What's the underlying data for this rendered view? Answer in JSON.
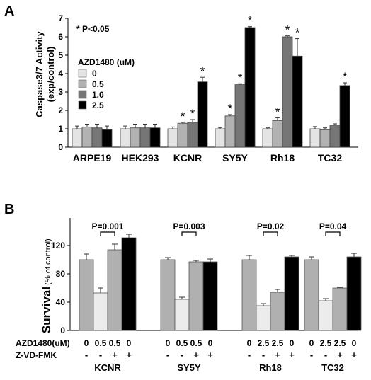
{
  "chart_data": [
    {
      "type": "bar",
      "panel_label": "A",
      "ylabel_line1": "Caspase3/7 Activity",
      "ylabel_line2": "(exp/control)",
      "ylim": [
        0,
        7
      ],
      "yticks": [
        "0",
        "1",
        "2",
        "3",
        "4",
        "5",
        "6",
        "7"
      ],
      "annotation": "* P<0.05",
      "legend_title": "AZD1480 (uM)",
      "legend_placement": "top-left",
      "categories": [
        "ARPE19",
        "HEK293",
        "KCNR",
        "SY5Y",
        "Rh18",
        "TC32"
      ],
      "series": [
        {
          "name": "0",
          "color": "#e4e4e4",
          "values": [
            1.0,
            1.0,
            1.0,
            1.0,
            1.0,
            1.0
          ],
          "errors": [
            0.15,
            0.15,
            0.1,
            0.07,
            0.05,
            0.12
          ],
          "sig": [
            false,
            false,
            false,
            false,
            false,
            false
          ]
        },
        {
          "name": "0.5",
          "color": "#b2b2b2",
          "values": [
            1.1,
            1.05,
            1.3,
            1.7,
            1.45,
            0.95
          ],
          "errors": [
            0.15,
            0.2,
            0.05,
            0.07,
            0.15,
            0.1
          ],
          "sig": [
            false,
            false,
            true,
            true,
            true,
            false
          ]
        },
        {
          "name": "1.0",
          "color": "#767676",
          "values": [
            1.05,
            1.05,
            1.35,
            3.4,
            6.0,
            1.2
          ],
          "errors": [
            0.2,
            0.2,
            0.15,
            0.05,
            0.05,
            0.07
          ],
          "sig": [
            false,
            false,
            true,
            true,
            true,
            false
          ]
        },
        {
          "name": "2.5",
          "color": "#000000",
          "values": [
            0.95,
            1.05,
            3.55,
            6.5,
            4.95,
            3.35
          ],
          "errors": [
            0.2,
            0.2,
            0.25,
            0.05,
            0.95,
            0.15
          ],
          "sig": [
            false,
            false,
            true,
            true,
            true,
            true
          ]
        }
      ],
      "asterisk": "*"
    },
    {
      "type": "bar",
      "panel_label": "B",
      "ylabel": "Survival",
      "ylabel_unit": "(% of control)",
      "ylim": [
        0,
        140
      ],
      "yticks": [
        "0",
        "40",
        "80",
        "120"
      ],
      "row_labels": [
        "AZD1480(uM)",
        "Z-VD-FMK"
      ],
      "groups": [
        {
          "name": "KCNR",
          "values": [
            100,
            53,
            114,
            131
          ],
          "errors": [
            8,
            7,
            8,
            5
          ],
          "colors": [
            "#b0b0b0",
            "#ececec",
            "#b0b0b0",
            "#000000"
          ],
          "azd": [
            "0",
            "0.5",
            "0.5",
            "0"
          ],
          "zvd": [
            "-",
            "-",
            "+",
            "+"
          ],
          "p_label": "P=0.001",
          "p_bars": [
            1,
            2
          ]
        },
        {
          "name": "SY5Y",
          "values": [
            100,
            44,
            97,
            97
          ],
          "errors": [
            3,
            3,
            2,
            4
          ],
          "colors": [
            "#b0b0b0",
            "#ececec",
            "#b0b0b0",
            "#000000"
          ],
          "azd": [
            "0",
            "0.5",
            "0.5",
            "0"
          ],
          "zvd": [
            "-",
            "-",
            "+",
            "+"
          ],
          "p_label": "P=0.003",
          "p_bars": [
            1,
            2
          ]
        },
        {
          "name": "Rh18",
          "values": [
            100,
            35,
            54,
            104
          ],
          "errors": [
            6,
            3,
            4,
            2
          ],
          "colors": [
            "#b0b0b0",
            "#ececec",
            "#b0b0b0",
            "#000000"
          ],
          "azd": [
            "0",
            "2.5",
            "2.5",
            "0"
          ],
          "zvd": [
            "-",
            "-",
            "+",
            "+"
          ],
          "p_label": "P=0.02",
          "p_bars": [
            1,
            2
          ]
        },
        {
          "name": "TC32",
          "values": [
            100,
            42,
            60,
            104
          ],
          "errors": [
            4,
            3,
            1,
            5
          ],
          "colors": [
            "#b0b0b0",
            "#ececec",
            "#b0b0b0",
            "#000000"
          ],
          "azd": [
            "0",
            "2.5",
            "2.5",
            "0"
          ],
          "zvd": [
            "-",
            "-",
            "+",
            "+"
          ],
          "p_label": "P=0.04",
          "p_bars": [
            1,
            2
          ]
        }
      ]
    }
  ]
}
